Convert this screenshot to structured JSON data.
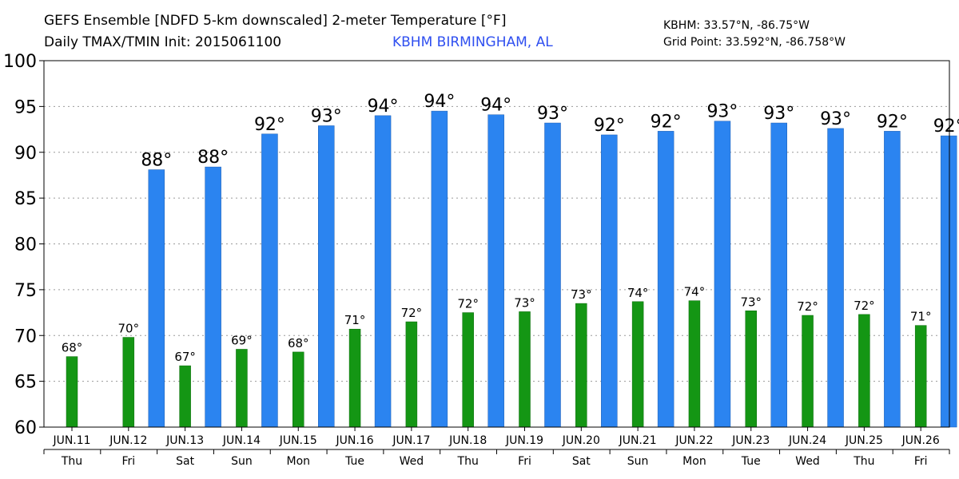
{
  "header": {
    "title_line1": "GEFS Ensemble [NDFD 5-km downscaled] 2-meter Temperature [°F]",
    "title_line2": "Daily TMAX/TMIN Init: 2015061100",
    "station": "KBHM BIRMINGHAM, AL",
    "station_coords": "KBHM: 33.57°N, -86.75°W",
    "grid_point": "Grid Point: 33.592°N, -86.758°W"
  },
  "colors": {
    "tmax": "#2b84f0",
    "tmin": "#149614",
    "station": "#2f4ff0",
    "grid": "#9a9a9a"
  },
  "chart_data": {
    "type": "bar",
    "ylim": [
      60,
      100
    ],
    "yticks": [
      60,
      65,
      70,
      75,
      80,
      85,
      90,
      95,
      100
    ],
    "grid": "horizontal dotted",
    "categories": [
      "JUN.11",
      "JUN.12",
      "JUN.13",
      "JUN.14",
      "JUN.15",
      "JUN.16",
      "JUN.17",
      "JUN.18",
      "JUN.19",
      "JUN.20",
      "JUN.21",
      "JUN.22",
      "JUN.23",
      "JUN.24",
      "JUN.25",
      "JUN.26"
    ],
    "weekdays": [
      "Thu",
      "Fri",
      "Sat",
      "Sun",
      "Mon",
      "Tue",
      "Wed",
      "Thu",
      "Fri",
      "Sat",
      "Sun",
      "Mon",
      "Tue",
      "Wed",
      "Thu",
      "Fri"
    ],
    "series": [
      {
        "key": "tmin",
        "values": [
          67.7,
          69.8,
          66.7,
          68.5,
          68.2,
          70.7,
          71.5,
          72.5,
          72.6,
          73.5,
          73.7,
          73.8,
          72.7,
          72.2,
          72.3,
          71.1
        ],
        "labels": [
          "68°",
          "70°",
          "67°",
          "69°",
          "68°",
          "71°",
          "72°",
          "72°",
          "73°",
          "73°",
          "74°",
          "74°",
          "73°",
          "72°",
          "72°",
          "71°"
        ]
      },
      {
        "key": "tmax",
        "values": [
          null,
          88.1,
          88.4,
          92.0,
          92.9,
          94.0,
          94.5,
          94.1,
          93.2,
          91.9,
          92.3,
          93.4,
          93.2,
          92.6,
          92.3,
          91.8
        ],
        "labels": [
          null,
          "88°",
          "88°",
          "92°",
          "93°",
          "94°",
          "94°",
          "94°",
          "93°",
          "92°",
          "92°",
          "93°",
          "93°",
          "93°",
          "92°",
          "92°"
        ]
      }
    ]
  }
}
